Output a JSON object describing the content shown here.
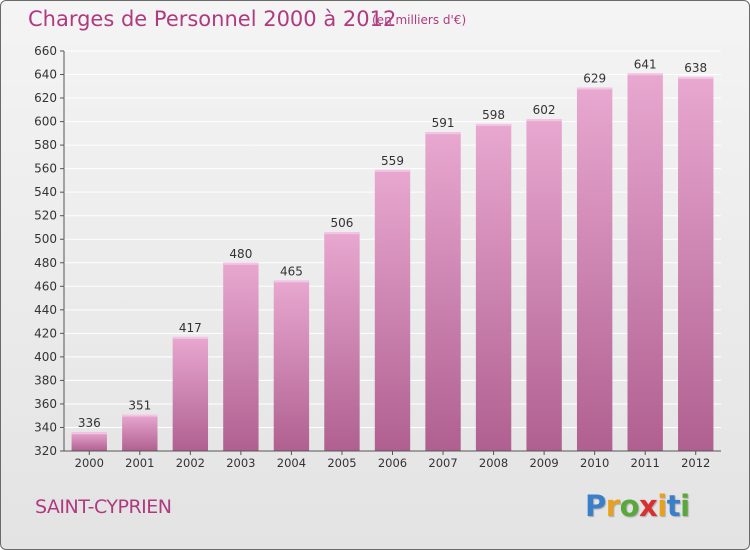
{
  "title": "Charges de Personnel 2000 à 2012",
  "subtitle": "(en milliers d'€)",
  "commune": "SAINT-CYPRIEN",
  "logo": {
    "letters": [
      "P",
      "r",
      "o",
      "x",
      "i",
      "t",
      "i"
    ],
    "colors": [
      "#3a7fc8",
      "#e8a020",
      "#5aa83c",
      "#d83030",
      "#e8a020",
      "#3a7fc8",
      "#5aa83c"
    ]
  },
  "colors": {
    "bar_top": "#e8a8d0",
    "bar_bottom": "#b06090",
    "grid": "#ffffff",
    "text": "#333333",
    "accent": "#b03a80"
  },
  "chart_data": {
    "type": "bar",
    "title": "Charges de Personnel 2000 à 2012",
    "xlabel": "",
    "ylabel": "",
    "categories": [
      "2000",
      "2001",
      "2002",
      "2003",
      "2004",
      "2005",
      "2006",
      "2007",
      "2008",
      "2009",
      "2010",
      "2011",
      "2012"
    ],
    "values": [
      336,
      351,
      417,
      480,
      465,
      506,
      559,
      591,
      598,
      602,
      629,
      641,
      638
    ],
    "ylim": [
      320,
      660
    ],
    "yticks": [
      320,
      340,
      360,
      380,
      400,
      420,
      440,
      460,
      480,
      500,
      520,
      540,
      560,
      580,
      600,
      620,
      640,
      660
    ],
    "grid": true
  }
}
